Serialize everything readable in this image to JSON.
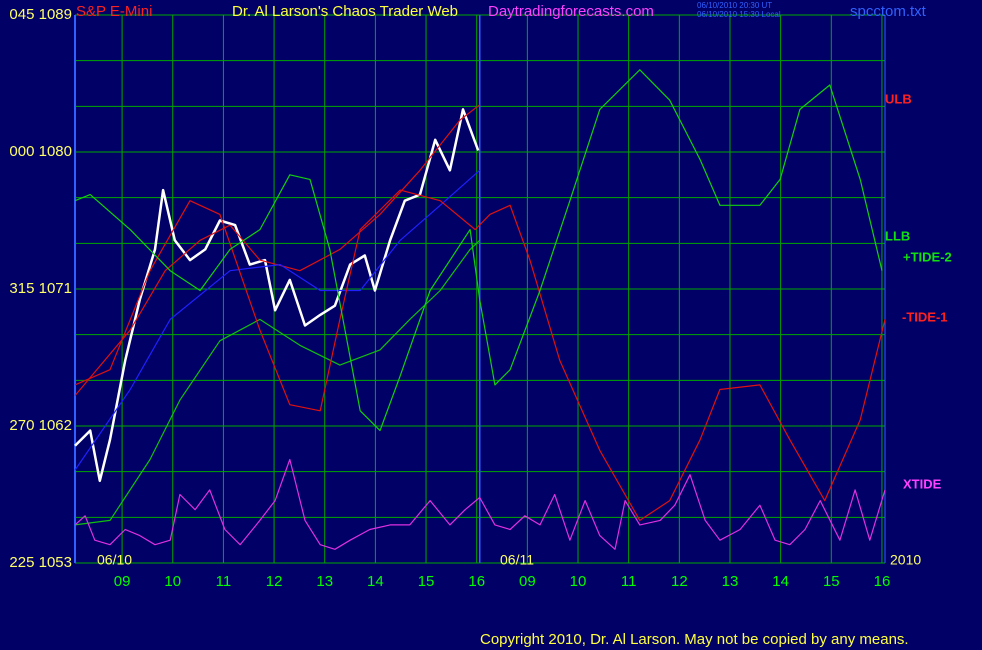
{
  "chart_data": {
    "type": "line",
    "title": "Dr. Al Larson's Chaos Trader Web",
    "instrument": "S&P E-Mini",
    "site": "Daytradingforecasts.com",
    "timestamp_ut": "06/10/2010 20:30 UT",
    "timestamp_local": "06/10/2010 15:30 Local",
    "file": "spcctom.txt",
    "copyright": "Copyright 2010, Dr. Al Larson. May not be copied by any means.",
    "dates": [
      "06/10",
      "06/11",
      "2010"
    ],
    "xlim": [
      0.07,
      16.06
    ],
    "xticks": [
      {
        "value": 1,
        "label": "09"
      },
      {
        "value": 2,
        "label": "10"
      },
      {
        "value": 3,
        "label": "11"
      },
      {
        "value": 4,
        "label": "12"
      },
      {
        "value": 5,
        "label": "13"
      },
      {
        "value": 6,
        "label": "14"
      },
      {
        "value": 7,
        "label": "15"
      },
      {
        "value": 8,
        "label": "16"
      },
      {
        "value": 9,
        "label": "09"
      },
      {
        "value": 10,
        "label": "10"
      },
      {
        "value": 11,
        "label": "11"
      },
      {
        "value": 12,
        "label": "12"
      },
      {
        "value": 13,
        "label": "13"
      },
      {
        "value": 14,
        "label": "14"
      },
      {
        "value": 15,
        "label": "15"
      },
      {
        "value": 16,
        "label": "16"
      }
    ],
    "session_break": 8.06,
    "ylim": [
      1053,
      1089
    ],
    "yticks": [
      {
        "value": 1089,
        "label": "045 1089"
      },
      {
        "value": 1080,
        "label": "000 1080"
      },
      {
        "value": 1071,
        "label": "315 1071"
      },
      {
        "value": 1062,
        "label": "270 1062"
      },
      {
        "value": 1053,
        "label": "225 1053"
      }
    ],
    "ygrid": [
      1053,
      1056,
      1059,
      1062,
      1065,
      1068,
      1071,
      1074,
      1077,
      1080,
      1083,
      1086,
      1089
    ],
    "grid": true,
    "grid_color": "#00a800",
    "series": [
      {
        "color": "#ffffff",
        "x": [
          0.07,
          0.37,
          0.56,
          0.76,
          1.06,
          1.35,
          1.65,
          1.81,
          2.04,
          2.34,
          2.64,
          2.93,
          3.23,
          3.52,
          3.82,
          4.02,
          4.31,
          4.61,
          4.91,
          5.2,
          5.5,
          5.79,
          5.99,
          6.29,
          6.58,
          6.88,
          7.18,
          7.47,
          7.73,
          8.03
        ],
        "values": [
          1060.7,
          1061.7,
          1058.4,
          1061.1,
          1066.3,
          1070.3,
          1073.6,
          1077.5,
          1074.2,
          1072.9,
          1073.6,
          1075.5,
          1075.2,
          1072.6,
          1072.9,
          1069.6,
          1071.6,
          1068.6,
          1069.3,
          1069.9,
          1072.6,
          1073.2,
          1070.9,
          1074.2,
          1076.8,
          1077.2,
          1080.8,
          1078.8,
          1082.8,
          1080.1
        ]
      },
      {
        "name": "ULB",
        "color": "#e01010",
        "x": [
          0.07,
          1.16,
          1.85,
          2.54,
          3.13,
          3.72,
          4.51,
          5.3,
          6.09,
          6.88,
          7.67,
          8.06
        ],
        "values": [
          1064.0,
          1068.3,
          1072.2,
          1074.2,
          1075.2,
          1072.9,
          1072.2,
          1073.6,
          1075.9,
          1078.8,
          1082.1,
          1083.1
        ]
      },
      {
        "name": "LLB",
        "color": "#10c010",
        "x": [
          0.07,
          0.76,
          1.55,
          2.14,
          2.93,
          3.72,
          4.51,
          5.3,
          6.09,
          6.68,
          7.28,
          7.87,
          8.06
        ],
        "values": [
          1055.5,
          1055.8,
          1059.8,
          1063.7,
          1067.6,
          1069.0,
          1067.3,
          1066.0,
          1067.0,
          1069.0,
          1070.9,
          1073.6,
          1074.2
        ]
      },
      {
        "color": "#2020ff",
        "x": [
          0.07,
          1.16,
          1.95,
          3.13,
          4.12,
          4.91,
          5.7,
          6.49,
          7.28,
          8.06
        ],
        "values": [
          1059.1,
          1064.4,
          1069.0,
          1072.2,
          1072.6,
          1070.9,
          1070.9,
          1074.2,
          1076.5,
          1078.8
        ]
      },
      {
        "name": "-TIDE-1",
        "color": "#e01010",
        "x": [
          0.07,
          0.76,
          1.55,
          2.34,
          2.93,
          3.72,
          4.31,
          4.91,
          5.3,
          5.7,
          6.49,
          7.28,
          7.97,
          8.26,
          8.66,
          9.05,
          9.64,
          10.43,
          11.22,
          11.81,
          12.41,
          12.8,
          13.59,
          14.18,
          14.87,
          15.57,
          16.06
        ],
        "values": [
          1064.7,
          1065.7,
          1072.2,
          1076.8,
          1075.9,
          1068.3,
          1063.4,
          1063.0,
          1069.0,
          1074.9,
          1077.5,
          1076.8,
          1074.9,
          1075.9,
          1076.5,
          1072.9,
          1066.3,
          1060.4,
          1055.8,
          1057.1,
          1061.1,
          1064.4,
          1064.7,
          1061.1,
          1057.1,
          1062.4,
          1069.0
        ]
      },
      {
        "name": "+TIDE-2",
        "color": "#10d010",
        "x": [
          0.07,
          0.37,
          1.16,
          1.95,
          2.54,
          3.13,
          3.72,
          4.31,
          4.71,
          5.1,
          5.7,
          6.09,
          6.49,
          7.08,
          7.87,
          8.06,
          8.36,
          8.66,
          9.25,
          9.84,
          10.43,
          11.22,
          11.81,
          12.41,
          12.8,
          13.59,
          13.99,
          14.38,
          14.97,
          15.57,
          16.0
        ],
        "values": [
          1076.8,
          1077.2,
          1074.9,
          1072.2,
          1070.9,
          1073.6,
          1074.9,
          1078.5,
          1078.2,
          1073.6,
          1063.0,
          1061.7,
          1065.3,
          1070.9,
          1074.9,
          1070.3,
          1064.7,
          1065.7,
          1070.9,
          1076.8,
          1082.8,
          1085.4,
          1083.4,
          1079.5,
          1076.5,
          1076.5,
          1078.2,
          1082.8,
          1084.4,
          1078.2,
          1072.2
        ]
      },
      {
        "name": "XTIDE",
        "color": "#e030e0",
        "x": [
          0.07,
          0.27,
          0.46,
          0.76,
          1.06,
          1.35,
          1.65,
          1.95,
          2.14,
          2.44,
          2.73,
          3.03,
          3.33,
          3.72,
          4.02,
          4.31,
          4.61,
          4.91,
          5.2,
          5.5,
          5.89,
          6.29,
          6.68,
          7.08,
          7.47,
          7.77,
          8.06,
          8.36,
          8.66,
          8.95,
          9.25,
          9.54,
          9.84,
          10.14,
          10.43,
          10.73,
          10.93,
          11.22,
          11.62,
          11.91,
          12.21,
          12.51,
          12.8,
          13.2,
          13.59,
          13.89,
          14.18,
          14.48,
          14.78,
          15.17,
          15.47,
          15.76,
          16.06
        ],
        "values": [
          1055.5,
          1056.1,
          1054.5,
          1054.2,
          1055.2,
          1054.8,
          1054.2,
          1054.5,
          1057.5,
          1056.5,
          1057.8,
          1055.2,
          1054.2,
          1055.8,
          1057.1,
          1059.8,
          1055.8,
          1054.2,
          1053.9,
          1054.5,
          1055.2,
          1055.5,
          1055.5,
          1057.1,
          1055.5,
          1056.5,
          1057.3,
          1055.5,
          1055.2,
          1056.1,
          1055.5,
          1057.5,
          1054.5,
          1057.1,
          1054.8,
          1053.9,
          1057.1,
          1055.5,
          1055.8,
          1056.8,
          1058.8,
          1055.8,
          1054.5,
          1055.2,
          1056.8,
          1054.5,
          1054.2,
          1055.2,
          1057.1,
          1054.5,
          1057.8,
          1054.5,
          1057.8
        ]
      }
    ]
  }
}
